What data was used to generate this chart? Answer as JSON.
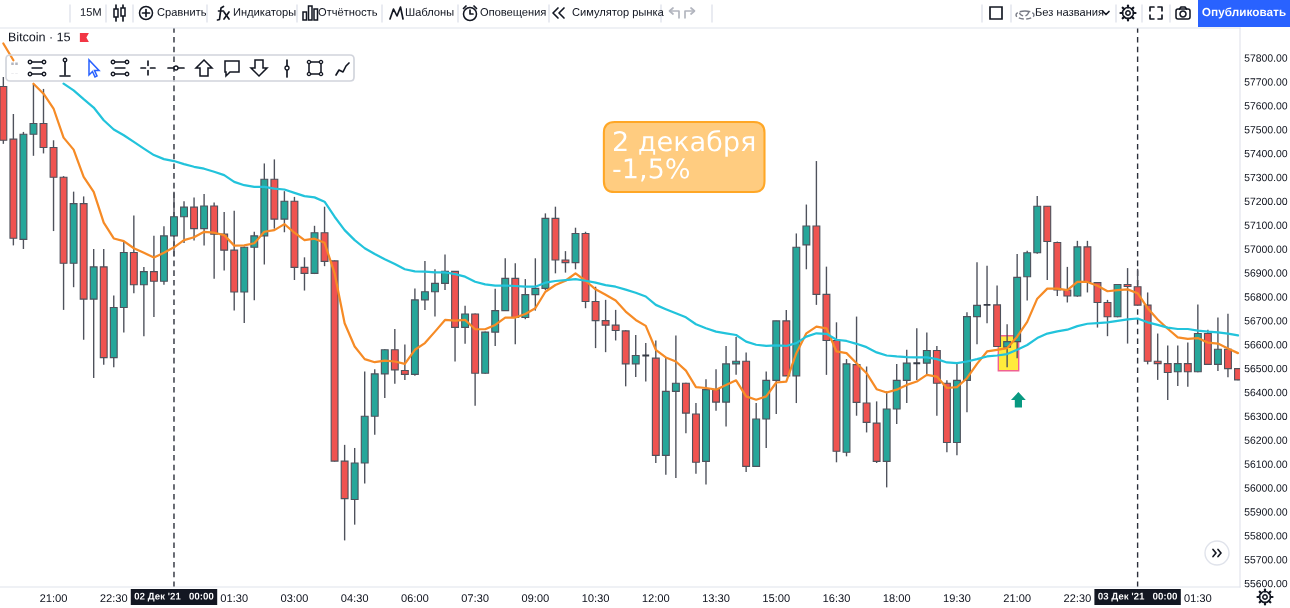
{
  "chart_data": {
    "type": "candlestick",
    "title": "Bitcoin · 15",
    "x": [
      "2021-12-01T19:45",
      "2021-12-01T20:00",
      "2021-12-01T20:15",
      "2021-12-01T20:30",
      "2021-12-01T20:45",
      "2021-12-01T21:00",
      "2021-12-01T21:15",
      "2021-12-01T21:30",
      "2021-12-01T21:45",
      "2021-12-01T22:00",
      "2021-12-01T22:15",
      "2021-12-01T22:30",
      "2021-12-01T22:45",
      "2021-12-01T23:00",
      "2021-12-01T23:15",
      "2021-12-01T23:30",
      "2021-12-01T23:45",
      "2021-12-02T00:00",
      "2021-12-02T00:15",
      "2021-12-02T00:30",
      "2021-12-02T00:45",
      "2021-12-02T01:00",
      "2021-12-02T01:15",
      "2021-12-02T01:30",
      "2021-12-02T01:45",
      "2021-12-02T02:00",
      "2021-12-02T02:15",
      "2021-12-02T02:30",
      "2021-12-02T02:45",
      "2021-12-02T03:00",
      "2021-12-02T03:15",
      "2021-12-02T03:30",
      "2021-12-02T03:45",
      "2021-12-02T04:00",
      "2021-12-02T04:15",
      "2021-12-02T04:30",
      "2021-12-02T04:45",
      "2021-12-02T05:00",
      "2021-12-02T05:15",
      "2021-12-02T05:30",
      "2021-12-02T05:45",
      "2021-12-02T06:00",
      "2021-12-02T06:15",
      "2021-12-02T06:30",
      "2021-12-02T06:45",
      "2021-12-02T07:00",
      "2021-12-02T07:15",
      "2021-12-02T07:30",
      "2021-12-02T07:45",
      "2021-12-02T08:00",
      "2021-12-02T08:15",
      "2021-12-02T08:30",
      "2021-12-02T08:45",
      "2021-12-02T09:00",
      "2021-12-02T09:15",
      "2021-12-02T09:30",
      "2021-12-02T09:45",
      "2021-12-02T10:00",
      "2021-12-02T10:15",
      "2021-12-02T10:30",
      "2021-12-02T10:45",
      "2021-12-02T11:00",
      "2021-12-02T11:15",
      "2021-12-02T11:30",
      "2021-12-02T11:45",
      "2021-12-02T12:00",
      "2021-12-02T12:15",
      "2021-12-02T12:30",
      "2021-12-02T12:45",
      "2021-12-02T13:00",
      "2021-12-02T13:15",
      "2021-12-02T13:30",
      "2021-12-02T13:45",
      "2021-12-02T14:00",
      "2021-12-02T14:15",
      "2021-12-02T14:30",
      "2021-12-02T14:45",
      "2021-12-02T15:00",
      "2021-12-02T15:15",
      "2021-12-02T15:30",
      "2021-12-02T15:45",
      "2021-12-02T16:00",
      "2021-12-02T16:15",
      "2021-12-02T16:30",
      "2021-12-02T16:45",
      "2021-12-02T17:00",
      "2021-12-02T17:15",
      "2021-12-02T17:30",
      "2021-12-02T17:45",
      "2021-12-02T18:00",
      "2021-12-02T18:15",
      "2021-12-02T18:30",
      "2021-12-02T18:45",
      "2021-12-02T19:00",
      "2021-12-02T19:15",
      "2021-12-02T19:30",
      "2021-12-02T19:45",
      "2021-12-02T20:00",
      "2021-12-02T20:15",
      "2021-12-02T20:30",
      "2021-12-02T20:45",
      "2021-12-02T21:00",
      "2021-12-02T21:15",
      "2021-12-02T21:30",
      "2021-12-02T21:45",
      "2021-12-02T22:00",
      "2021-12-02T22:15",
      "2021-12-02T22:30",
      "2021-12-02T22:45",
      "2021-12-02T23:00",
      "2021-12-02T23:15",
      "2021-12-02T23:30",
      "2021-12-02T23:45",
      "2021-12-03T00:00",
      "2021-12-03T00:15",
      "2021-12-03T00:30",
      "2021-12-03T00:45",
      "2021-12-03T01:00",
      "2021-12-03T01:15",
      "2021-12-03T01:30",
      "2021-12-03T01:45",
      "2021-12-03T02:00",
      "2021-12-03T02:15",
      "2021-12-03T02:30"
    ],
    "ohlc": [
      [
        57680,
        57720,
        57440,
        57455
      ],
      [
        57460,
        57565,
        57015,
        57045
      ],
      [
        57040,
        57490,
        57000,
        57480
      ],
      [
        57480,
        57690,
        57390,
        57525
      ],
      [
        57525,
        57670,
        57400,
        57425
      ],
      [
        57425,
        57455,
        57075,
        57300
      ],
      [
        57300,
        57305,
        56745,
        56940
      ],
      [
        56940,
        57240,
        56840,
        57190
      ],
      [
        57190,
        57220,
        56620,
        56790
      ],
      [
        56790,
        57000,
        56460,
        56925
      ],
      [
        56925,
        57000,
        56515,
        56545
      ],
      [
        56545,
        56805,
        56505,
        56755
      ],
      [
        56755,
        57030,
        56650,
        56985
      ],
      [
        56985,
        57140,
        56815,
        56850
      ],
      [
        56850,
        56925,
        56635,
        56905
      ],
      [
        56905,
        57055,
        56715,
        56865
      ],
      [
        56865,
        57095,
        56850,
        57055
      ],
      [
        57055,
        57240,
        56970,
        57135
      ],
      [
        57135,
        57200,
        57025,
        57175
      ],
      [
        57175,
        57215,
        57035,
        57085
      ],
      [
        57085,
        57230,
        57015,
        57180
      ],
      [
        57180,
        57195,
        56875,
        57062
      ],
      [
        57062,
        57155,
        56910,
        56995
      ],
      [
        56995,
        57160,
        56742,
        56820
      ],
      [
        56820,
        57010,
        56690,
        57007
      ],
      [
        57007,
        57072,
        56785,
        57055
      ],
      [
        57055,
        57358,
        56935,
        57292
      ],
      [
        57292,
        57375,
        57085,
        57125
      ],
      [
        57125,
        57242,
        57070,
        57200
      ],
      [
        57200,
        57218,
        56870,
        56923
      ],
      [
        56923,
        56965,
        56826,
        56898
      ],
      [
        56898,
        57097,
        56895,
        57068
      ],
      [
        57068,
        57177,
        56928,
        56948
      ],
      [
        56950,
        56952,
        56110,
        56112
      ],
      [
        56112,
        56180,
        55780,
        55955
      ],
      [
        55951,
        56167,
        55846,
        56104
      ],
      [
        56104,
        56487,
        56018,
        56300
      ],
      [
        56300,
        56497,
        56222,
        56477
      ],
      [
        56477,
        56580,
        56376,
        56578
      ],
      [
        56578,
        56665,
        56436,
        56494
      ],
      [
        56491,
        56600,
        56452,
        56475
      ],
      [
        56475,
        56835,
        56469,
        56787
      ],
      [
        56787,
        56950,
        56745,
        56821
      ],
      [
        56821,
        56915,
        56717,
        56856
      ],
      [
        56856,
        56977,
        56828,
        56906
      ],
      [
        56906,
        56908,
        56529,
        56672
      ],
      [
        56672,
        56762,
        56603,
        56728
      ],
      [
        56728,
        56730,
        56344,
        56480
      ],
      [
        56480,
        56655,
        56478,
        56652
      ],
      [
        56652,
        56833,
        56594,
        56742
      ],
      [
        56742,
        56961,
        56740,
        56877
      ],
      [
        56877,
        56940,
        56601,
        56713
      ],
      [
        56713,
        56874,
        56706,
        56809
      ],
      [
        56809,
        56961,
        56742,
        56835
      ],
      [
        56835,
        57149,
        56828,
        57128
      ],
      [
        57128,
        57177,
        56898,
        56954
      ],
      [
        56954,
        56991,
        56901,
        56943
      ],
      [
        56943,
        57089,
        56915,
        57065
      ],
      [
        57065,
        57072,
        56752,
        56780
      ],
      [
        56780,
        56842,
        56585,
        56700
      ],
      [
        56700,
        56787,
        56568,
        56681
      ],
      [
        56681,
        56745,
        56617,
        56659
      ],
      [
        56657,
        56660,
        56425,
        56519
      ],
      [
        56519,
        56640,
        56464,
        56554
      ],
      [
        56554,
        56606,
        56445,
        56554
      ],
      [
        56543,
        56617,
        56104,
        56136
      ],
      [
        56136,
        56546,
        56055,
        56404
      ],
      [
        56404,
        56638,
        56041,
        56438
      ],
      [
        56438,
        56440,
        56229,
        56313
      ],
      [
        56309,
        56355,
        56059,
        56107
      ],
      [
        56111,
        56455,
        56014,
        56411
      ],
      [
        56411,
        56497,
        56323,
        56359
      ],
      [
        56359,
        56594,
        56257,
        56519
      ],
      [
        56519,
        56631,
        56473,
        56530
      ],
      [
        56530,
        56567,
        56066,
        56090
      ],
      [
        56090,
        56355,
        56088,
        56288
      ],
      [
        56288,
        56487,
        56167,
        56450
      ],
      [
        56450,
        56700,
        56309,
        56699
      ],
      [
        56699,
        56745,
        56468,
        56469
      ],
      [
        56469,
        57065,
        56355,
        57007
      ],
      [
        57017,
        57186,
        56915,
        57096
      ],
      [
        57096,
        57368,
        56766,
        56810
      ],
      [
        56810,
        56926,
        56473,
        56617
      ],
      [
        56617,
        56693,
        56107,
        56153
      ],
      [
        56149,
        56539,
        56132,
        56519
      ],
      [
        56516,
        56717,
        56302,
        56358
      ],
      [
        56355,
        56508,
        56232,
        56274
      ],
      [
        56271,
        56362,
        56104,
        56111
      ],
      [
        56111,
        56404,
        56002,
        56330
      ],
      [
        56330,
        56519,
        56267,
        56450
      ],
      [
        56450,
        56578,
        56355,
        56522
      ],
      [
        56522,
        56668,
        56452,
        56522
      ],
      [
        56522,
        56650,
        56469,
        56575
      ],
      [
        56575,
        56594,
        56302,
        56438
      ],
      [
        56438,
        56450,
        56149,
        56190
      ],
      [
        56190,
        56519,
        56136,
        56450
      ],
      [
        56450,
        56735,
        56316,
        56717
      ],
      [
        56717,
        56944,
        56601,
        56764
      ],
      [
        56766,
        56930,
        56689,
        56766
      ],
      [
        56766,
        56847,
        56590,
        56592
      ],
      [
        56589,
        56685,
        56505,
        56612
      ],
      [
        56612,
        56979,
        56543,
        56881
      ],
      [
        56884,
        56993,
        56784,
        56984
      ],
      [
        56984,
        57222,
        56980,
        57179
      ],
      [
        57179,
        57180,
        56870,
        57031
      ],
      [
        57027,
        57031,
        56803,
        56828
      ],
      [
        56828,
        56925,
        56776,
        56803
      ],
      [
        56803,
        57034,
        56800,
        57009
      ],
      [
        57009,
        57034,
        56818,
        56862
      ],
      [
        56859,
        56860,
        56671,
        56776
      ],
      [
        56776,
        56787,
        56635,
        56716
      ],
      [
        56716,
        56852,
        56714,
        56851
      ],
      [
        56851,
        56920,
        56604,
        56843
      ],
      [
        56842,
        56917,
        56763,
        56765
      ],
      [
        56765,
        56818,
        56517,
        56530
      ],
      [
        56530,
        56646,
        56452,
        56520
      ],
      [
        56520,
        56596,
        56368,
        56483
      ],
      [
        56486,
        56596,
        56426,
        56520
      ],
      [
        56520,
        56608,
        56423,
        56486
      ],
      [
        56486,
        56768,
        56484,
        56646
      ],
      [
        56646,
        56662,
        56515,
        56517
      ],
      [
        56517,
        56713,
        56489,
        56580
      ],
      [
        56580,
        56729,
        56463,
        56499
      ],
      [
        56499,
        56500,
        56450,
        56452
      ]
    ],
    "colors": [
      "#ef5350",
      "#ef5350",
      "#26a69a",
      "#26a69a",
      "#ef5350",
      "#ef5350",
      "#ef5350",
      "#26a69a",
      "#ef5350",
      "#26a69a",
      "#ef5350",
      "#26a69a",
      "#26a69a",
      "#ef5350",
      "#26a69a",
      "#ef5350",
      "#26a69a",
      "#26a69a",
      "#26a69a",
      "#ef5350",
      "#26a69a",
      "#ef5350",
      "#ef5350",
      "#ef5350",
      "#26a69a",
      "#26a69a",
      "#26a69a",
      "#ef5350",
      "#26a69a",
      "#ef5350",
      "#ef5350",
      "#26a69a",
      "#ef5350",
      "#ef5350",
      "#ef5350",
      "#26a69a",
      "#26a69a",
      "#26a69a",
      "#26a69a",
      "#ef5350",
      "#ef5350",
      "#26a69a",
      "#26a69a",
      "#26a69a",
      "#26a69a",
      "#ef5350",
      "#26a69a",
      "#ef5350",
      "#26a69a",
      "#26a69a",
      "#26a69a",
      "#ef5350",
      "#26a69a",
      "#26a69a",
      "#26a69a",
      "#ef5350",
      "#ef5350",
      "#26a69a",
      "#ef5350",
      "#ef5350",
      "#ef5350",
      "#ef5350",
      "#ef5350",
      "#26a69a",
      "#363a45",
      "#ef5350",
      "#26a69a",
      "#26a69a",
      "#ef5350",
      "#ef5350",
      "#26a69a",
      "#ef5350",
      "#26a69a",
      "#26a69a",
      "#ef5350",
      "#26a69a",
      "#26a69a",
      "#26a69a",
      "#ef5350",
      "#26a69a",
      "#26a69a",
      "#ef5350",
      "#ef5350",
      "#ef5350",
      "#26a69a",
      "#ef5350",
      "#ef5350",
      "#ef5350",
      "#26a69a",
      "#26a69a",
      "#26a69a",
      "#363a45",
      "#26a69a",
      "#ef5350",
      "#ef5350",
      "#26a69a",
      "#26a69a",
      "#26a69a",
      "#363a45",
      "#ef5350",
      "#26a69a",
      "#26a69a",
      "#26a69a",
      "#26a69a",
      "#ef5350",
      "#ef5350",
      "#ef5350",
      "#26a69a",
      "#ef5350",
      "#ef5350",
      "#ef5350",
      "#26a69a",
      "#ef5350",
      "#ef5350",
      "#ef5350",
      "#ef5350",
      "#ef5350",
      "#26a69a",
      "#ef5350",
      "#26a69a",
      "#ef5350",
      "#26a69a",
      "#ef5350",
      "#ef5350"
    ],
    "series": [
      {
        "type": "line",
        "color": "#f68b26",
        "values": [
          57860,
          57790,
          null,
          57692,
          57650,
          57588,
          57466,
          57416,
          57302,
          57239,
          57110,
          57044,
          57033,
          57003,
          56984,
          56964,
          56984,
          57007,
          57037,
          57049,
          57072,
          57068,
          57058,
          57014,
          57015,
          57024,
          57072,
          57079,
          57104,
          57068,
          57037,
          57043,
          57026,
          56898,
          56689,
          56592,
          56539,
          56526,
          56533,
          56529,
          56519,
          56578,
          56606,
          56654,
          56703,
          56700,
          56703,
          56664,
          56664,
          56682,
          56713,
          56713,
          56728,
          56752,
          56821,
          56849,
          56867,
          56898,
          56867,
          56831,
          56808,
          56784,
          56738,
          56703,
          56678,
          56578,
          56546,
          56529,
          56491,
          56422,
          56418,
          56411,
          56431,
          56450,
          56383,
          56369,
          56383,
          56441,
          56445,
          56564,
          56647,
          56675,
          56668,
          56571,
          56564,
          56522,
          56480,
          56413,
          56399,
          56411,
          56431,
          56445,
          56473,
          56466,
          56418,
          56422,
          56459,
          56519,
          56571,
          56578,
          56585,
          56633,
          56695,
          56792,
          56834,
          56834,
          56828,
          56862,
          56862,
          56846,
          56823,
          56828,
          56831,
          56815,
          56752,
          56705,
          56666,
          56630,
          56624,
          56627,
          56608,
          56604,
          56583,
          56564
        ]
      },
      {
        "type": "line",
        "color": "#22c3db",
        "values": [
          null,
          null,
          null,
          null,
          null,
          null,
          57692,
          57664,
          57627,
          57592,
          57539,
          57500,
          57476,
          57448,
          57420,
          57393,
          57376,
          57368,
          57355,
          57344,
          57336,
          57323,
          57309,
          57281,
          57267,
          57260,
          57260,
          57253,
          57249,
          57235,
          57221,
          57216,
          57198,
          57135,
          57079,
          57037,
          57003,
          56979,
          56957,
          56937,
          56915,
          56906,
          56905,
          56902,
          56902,
          56895,
          56884,
          56863,
          56852,
          56847,
          56847,
          56845,
          56842,
          56842,
          56859,
          56866,
          56870,
          56874,
          56867,
          56859,
          56849,
          56842,
          56830,
          56817,
          56801,
          56766,
          56748,
          56731,
          56714,
          56685,
          56668,
          56654,
          56647,
          56640,
          56612,
          56599,
          56594,
          56596,
          56594,
          56606,
          56633,
          56647,
          56645,
          56620,
          56615,
          56603,
          56589,
          56567,
          56554,
          56550,
          56547,
          56546,
          56546,
          56539,
          56525,
          56522,
          56529,
          56539,
          56550,
          56554,
          56560,
          56578,
          56598,
          56627,
          56646,
          56655,
          56662,
          56677,
          56687,
          56690,
          56693,
          56699,
          56705,
          56709,
          56693,
          56682,
          56671,
          56665,
          56665,
          56658,
          56654,
          56651,
          56646,
          56638
        ]
      }
    ],
    "xlim": [
      "2021-12-01T19:40",
      "2021-12-03T02:33"
    ],
    "xticks": [
      {
        "value": "2021-12-01T21:00",
        "label": "21:00"
      },
      {
        "value": "2021-12-01T22:30",
        "label": "22:30"
      },
      {
        "value": "2021-12-02T01:30",
        "label": "01:30"
      },
      {
        "value": "2021-12-02T03:00",
        "label": "03:00"
      },
      {
        "value": "2021-12-02T04:30",
        "label": "04:30"
      },
      {
        "value": "2021-12-02T06:00",
        "label": "06:00"
      },
      {
        "value": "2021-12-02T07:30",
        "label": "07:30"
      },
      {
        "value": "2021-12-02T09:00",
        "label": "09:00"
      },
      {
        "value": "2021-12-02T10:30",
        "label": "10:30"
      },
      {
        "value": "2021-12-02T12:00",
        "label": "12:00"
      },
      {
        "value": "2021-12-02T13:30",
        "label": "13:30"
      },
      {
        "value": "2021-12-02T15:00",
        "label": "15:00"
      },
      {
        "value": "2021-12-02T16:30",
        "label": "16:30"
      },
      {
        "value": "2021-12-02T18:00",
        "label": "18:00"
      },
      {
        "value": "2021-12-02T19:30",
        "label": "19:30"
      },
      {
        "value": "2021-12-02T21:00",
        "label": "21:00"
      },
      {
        "value": "2021-12-02T22:30",
        "label": "22:30"
      },
      {
        "value": "2021-12-03T01:30",
        "label": "01:30"
      }
    ],
    "ylim": [
      55585,
      57925
    ],
    "yticks": [
      {
        "value": 55600,
        "label": "55600.00"
      },
      {
        "value": 55700,
        "label": "55700.00"
      },
      {
        "value": 55800,
        "label": "55800.00"
      },
      {
        "value": 55900,
        "label": "55900.00"
      },
      {
        "value": 56000,
        "label": "56000.00"
      },
      {
        "value": 56100,
        "label": "56100.00"
      },
      {
        "value": 56200,
        "label": "56200.00"
      },
      {
        "value": 56300,
        "label": "56300.00"
      },
      {
        "value": 56400,
        "label": "56400.00"
      },
      {
        "value": 56500,
        "label": "56500.00"
      },
      {
        "value": 56600,
        "label": "56600.00"
      },
      {
        "value": 56700,
        "label": "56700.00"
      },
      {
        "value": 56800,
        "label": "56800.00"
      },
      {
        "value": 56900,
        "label": "56900.00"
      },
      {
        "value": 57000,
        "label": "57000.00"
      },
      {
        "value": 57100,
        "label": "57100.00"
      },
      {
        "value": 57200,
        "label": "57200.00"
      },
      {
        "value": 57300,
        "label": "57300.00"
      },
      {
        "value": 57400,
        "label": "57400.00"
      },
      {
        "value": 57500,
        "label": "57500.00"
      },
      {
        "value": 57600,
        "label": "57600.00"
      },
      {
        "value": 57700,
        "label": "57700.00"
      },
      {
        "value": 57800,
        "label": "57800.00"
      }
    ],
    "ref_lines": [
      {
        "axis": "x",
        "value": "2021-12-02T00:00",
        "label": "02 Дек '21   00:00",
        "line_style": "dashed",
        "color": "#2a2e39"
      },
      {
        "axis": "x",
        "value": "2021-12-03T00:00",
        "label": "03 Дек '21   00:00",
        "line_style": "dashed",
        "color": "#2a2e39"
      }
    ],
    "annotations": [
      "15M",
      "Сравнить",
      "Индикаторы",
      "Отчётность",
      "Шаблоны",
      "Оповещения",
      "Симулятор рынка",
      "Без названия",
      "Опубликовать",
      "2 декабря\n-1,5%"
    ]
  }
}
